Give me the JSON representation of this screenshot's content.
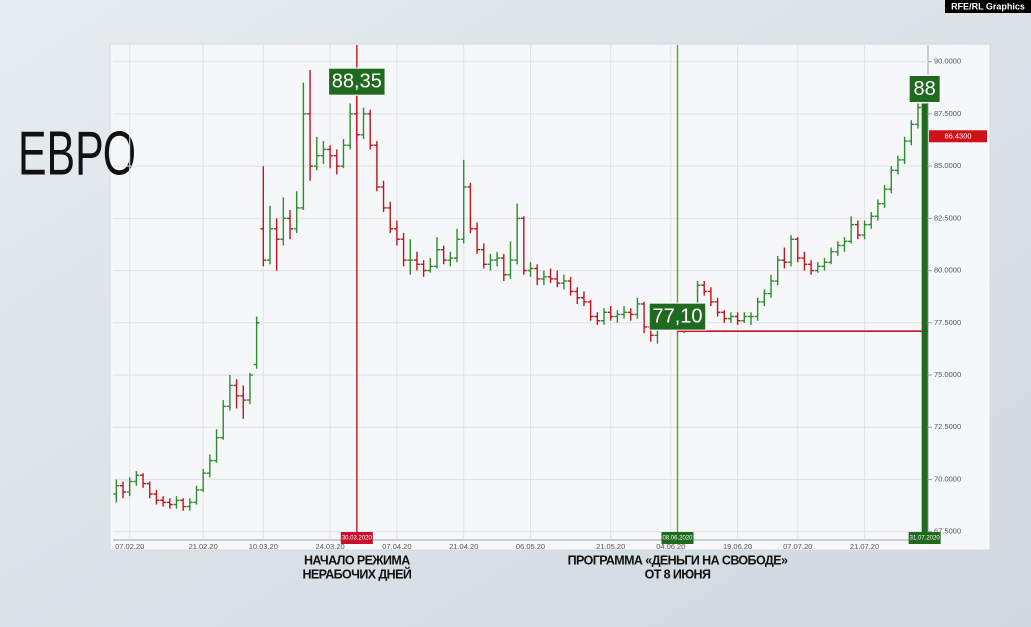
{
  "chart_data": {
    "type": "ohlc",
    "title": "ЕВРО",
    "credit": "RFE/RL Graphics",
    "categories": [
      null,
      null,
      "07.02.20",
      null,
      null,
      null,
      null,
      null,
      null,
      null,
      null,
      null,
      null,
      "21.02.20",
      null,
      null,
      null,
      null,
      null,
      null,
      null,
      null,
      "10.03.20",
      null,
      null,
      null,
      null,
      null,
      null,
      null,
      null,
      null,
      "24.03.20",
      null,
      null,
      null,
      null,
      null,
      null,
      null,
      null,
      null,
      "07.04.20",
      null,
      null,
      null,
      null,
      null,
      null,
      null,
      null,
      null,
      "21.04.20",
      null,
      null,
      null,
      null,
      null,
      null,
      null,
      null,
      null,
      "06.05.20",
      null,
      null,
      null,
      null,
      null,
      null,
      null,
      null,
      null,
      null,
      null,
      "21.05.20",
      null,
      null,
      null,
      null,
      null,
      null,
      null,
      null,
      "04.06.20",
      null,
      null,
      null,
      null,
      null,
      null,
      null,
      null,
      null,
      "19.06.20",
      null,
      null,
      null,
      null,
      null,
      null,
      null,
      null,
      "07.07.20",
      null,
      null,
      null,
      null,
      null,
      null,
      null,
      null,
      null,
      "21.07.20",
      null,
      null,
      null,
      null,
      null,
      null,
      null,
      null,
      null
    ],
    "ohlc": [
      [
        69.3,
        70.0,
        68.9,
        69.7
      ],
      [
        69.7,
        69.9,
        69.1,
        69.4
      ],
      [
        69.4,
        70.1,
        69.2,
        69.9
      ],
      [
        69.9,
        70.4,
        69.7,
        70.2
      ],
      [
        70.2,
        70.3,
        69.6,
        69.8
      ],
      [
        69.8,
        69.9,
        69.1,
        69.3
      ],
      [
        69.3,
        69.5,
        68.8,
        69.0
      ],
      [
        69.0,
        69.2,
        68.7,
        68.9
      ],
      [
        68.9,
        69.1,
        68.6,
        68.8
      ],
      [
        68.8,
        69.2,
        68.6,
        69.0
      ],
      [
        69.0,
        69.1,
        68.5,
        68.7
      ],
      [
        68.7,
        69.1,
        68.5,
        68.9
      ],
      [
        68.9,
        69.7,
        68.8,
        69.5
      ],
      [
        69.5,
        70.5,
        69.4,
        70.3
      ],
      [
        70.3,
        71.2,
        70.1,
        70.9
      ],
      [
        70.9,
        72.4,
        70.8,
        72.0
      ],
      [
        72.0,
        73.8,
        71.9,
        73.5
      ],
      [
        73.5,
        75.0,
        73.3,
        74.5
      ],
      [
        74.5,
        74.8,
        73.4,
        74.0
      ],
      [
        74.0,
        74.5,
        72.9,
        73.8
      ],
      [
        73.8,
        75.1,
        73.6,
        75.0
      ],
      [
        75.5,
        77.8,
        75.3,
        77.5
      ],
      [
        82.0,
        85.0,
        80.2,
        80.5
      ],
      [
        80.5,
        83.1,
        80.3,
        82.0
      ],
      [
        82.0,
        82.5,
        80.0,
        81.5
      ],
      [
        81.5,
        83.5,
        81.2,
        82.5
      ],
      [
        82.5,
        82.9,
        81.5,
        82.0
      ],
      [
        82.0,
        83.8,
        81.8,
        83.0
      ],
      [
        83.0,
        89.0,
        82.9,
        87.5
      ],
      [
        87.5,
        89.6,
        84.3,
        85.0
      ],
      [
        85.0,
        86.4,
        84.8,
        85.5
      ],
      [
        85.5,
        86.2,
        85.1,
        85.8
      ],
      [
        85.8,
        86.0,
        84.9,
        85.5
      ],
      [
        85.5,
        85.8,
        84.6,
        85.0
      ],
      [
        85.0,
        86.3,
        84.9,
        86.0
      ],
      [
        86.0,
        88.0,
        85.8,
        87.5
      ],
      [
        87.5,
        88.35,
        86.2,
        86.5
      ],
      [
        86.5,
        87.8,
        86.3,
        87.5
      ],
      [
        87.5,
        87.7,
        85.8,
        86.0
      ],
      [
        86.0,
        86.2,
        83.8,
        84.0
      ],
      [
        84.0,
        84.3,
        82.8,
        83.0
      ],
      [
        83.0,
        83.3,
        81.8,
        82.0
      ],
      [
        82.0,
        82.4,
        81.2,
        81.5
      ],
      [
        81.5,
        81.8,
        80.2,
        80.5
      ],
      [
        80.5,
        81.5,
        79.8,
        80.5
      ],
      [
        80.5,
        80.9,
        80.0,
        80.3
      ],
      [
        80.3,
        80.5,
        79.7,
        80.0
      ],
      [
        80.0,
        80.6,
        79.9,
        80.2
      ],
      [
        80.2,
        81.6,
        80.1,
        81.0
      ],
      [
        81.0,
        81.2,
        80.3,
        80.5
      ],
      [
        80.5,
        80.9,
        80.2,
        80.6
      ],
      [
        80.6,
        82.0,
        80.4,
        81.5
      ],
      [
        81.5,
        85.3,
        81.3,
        84.0
      ],
      [
        84.0,
        84.2,
        81.8,
        82.0
      ],
      [
        82.0,
        82.3,
        80.8,
        81.0
      ],
      [
        81.0,
        81.3,
        80.1,
        80.3
      ],
      [
        80.3,
        80.8,
        80.0,
        80.5
      ],
      [
        80.5,
        80.9,
        80.2,
        80.6
      ],
      [
        80.6,
        80.8,
        79.5,
        79.8
      ],
      [
        79.8,
        81.4,
        79.6,
        80.5
      ],
      [
        80.5,
        83.2,
        80.3,
        82.5
      ],
      [
        82.5,
        82.6,
        79.8,
        80.0
      ],
      [
        80.0,
        80.4,
        79.7,
        80.1
      ],
      [
        80.1,
        80.3,
        79.3,
        79.6
      ],
      [
        79.6,
        80.0,
        79.3,
        79.7
      ],
      [
        79.7,
        80.1,
        79.4,
        79.6
      ],
      [
        79.6,
        80.0,
        79.2,
        79.4
      ],
      [
        79.4,
        79.8,
        79.1,
        79.5
      ],
      [
        79.5,
        79.7,
        78.8,
        79.0
      ],
      [
        79.0,
        79.2,
        78.4,
        78.7
      ],
      [
        78.7,
        79.0,
        78.3,
        78.5
      ],
      [
        78.5,
        78.6,
        77.6,
        77.8
      ],
      [
        77.8,
        78.0,
        77.4,
        77.6
      ],
      [
        77.6,
        78.2,
        77.4,
        78.0
      ],
      [
        78.0,
        78.3,
        77.6,
        77.8
      ],
      [
        77.8,
        78.1,
        77.5,
        77.9
      ],
      [
        77.9,
        78.3,
        77.7,
        78.0
      ],
      [
        78.0,
        78.2,
        77.6,
        77.9
      ],
      [
        77.9,
        78.7,
        77.7,
        78.4
      ],
      [
        78.4,
        78.5,
        77.0,
        77.3
      ],
      [
        77.3,
        77.5,
        76.6,
        76.9
      ],
      [
        76.9,
        77.8,
        76.5,
        77.5
      ],
      [
        77.5,
        78.2,
        77.3,
        77.9
      ],
      [
        77.9,
        78.0,
        77.3,
        77.6
      ],
      [
        77.6,
        77.8,
        76.9,
        77.1
      ],
      [
        77.1,
        78.0,
        77.0,
        77.8
      ],
      [
        77.8,
        78.1,
        77.3,
        77.5
      ],
      [
        77.5,
        79.5,
        77.4,
        79.3
      ],
      [
        79.3,
        79.5,
        78.8,
        79.0
      ],
      [
        79.0,
        79.2,
        78.3,
        78.5
      ],
      [
        78.5,
        78.7,
        77.8,
        78.0
      ],
      [
        78.0,
        78.1,
        77.5,
        77.7
      ],
      [
        77.7,
        78.0,
        77.5,
        77.8
      ],
      [
        77.8,
        78.0,
        77.4,
        77.6
      ],
      [
        77.6,
        78.0,
        77.5,
        77.8
      ],
      [
        77.8,
        78.0,
        77.4,
        77.8
      ],
      [
        77.8,
        78.7,
        77.6,
        78.5
      ],
      [
        78.5,
        79.1,
        78.3,
        78.9
      ],
      [
        78.9,
        79.8,
        78.7,
        79.5
      ],
      [
        79.5,
        80.7,
        79.3,
        80.5
      ],
      [
        80.5,
        81.1,
        80.1,
        80.4
      ],
      [
        80.4,
        81.7,
        80.2,
        81.5
      ],
      [
        81.5,
        81.6,
        80.4,
        80.6
      ],
      [
        80.6,
        80.9,
        80.0,
        80.3
      ],
      [
        80.3,
        80.5,
        79.8,
        80.0
      ],
      [
        80.0,
        80.4,
        79.9,
        80.2
      ],
      [
        80.2,
        80.6,
        80.0,
        80.4
      ],
      [
        80.4,
        81.1,
        80.3,
        80.9
      ],
      [
        80.9,
        81.4,
        80.7,
        81.2
      ],
      [
        81.2,
        81.6,
        80.9,
        81.4
      ],
      [
        81.4,
        82.6,
        81.3,
        82.2
      ],
      [
        82.2,
        82.4,
        81.5,
        81.7
      ],
      [
        81.7,
        82.4,
        81.5,
        82.2
      ],
      [
        82.2,
        82.8,
        82.0,
        82.6
      ],
      [
        82.6,
        83.4,
        82.4,
        83.2
      ],
      [
        83.2,
        84.1,
        83.0,
        83.9
      ],
      [
        83.9,
        85.0,
        83.7,
        84.8
      ],
      [
        84.8,
        85.5,
        84.6,
        85.3
      ],
      [
        85.3,
        86.4,
        85.1,
        86.2
      ],
      [
        86.2,
        87.2,
        86.0,
        87.0
      ],
      [
        87.0,
        88.0,
        86.8,
        87.8
      ],
      [
        87.8,
        88.0,
        86.2,
        86.4
      ]
    ],
    "up_color": "#2e8b2e",
    "down_color": "#c0141e",
    "ylim": [
      67.1,
      90.8
    ],
    "yticks": [
      {
        "value": 67.5,
        "label": "67.5000"
      },
      {
        "value": 70,
        "label": "70.0000"
      },
      {
        "value": 72.5,
        "label": "72.5000"
      },
      {
        "value": 75,
        "label": "75.0000"
      },
      {
        "value": 77.5,
        "label": "77.5000"
      },
      {
        "value": 80,
        "label": "80.0000"
      },
      {
        "value": 82.5,
        "label": "82.5000"
      },
      {
        "value": 85,
        "label": "85.0000"
      },
      {
        "value": 87.5,
        "label": "87.5000"
      },
      {
        "value": 90,
        "label": "90.0000"
      }
    ],
    "grid": true,
    "last_price": {
      "value": 86.43,
      "label": "86.4300",
      "color": "#d0101a"
    },
    "markers": [
      {
        "index": 36,
        "date_label": "30.03.2020",
        "value": 88.35,
        "value_label": "88,35",
        "line_color": "#c8102e",
        "date_color": "#c8102e",
        "style": "line",
        "caption": [
          "НАЧАЛО РЕЖИМА",
          "НЕРАБОЧИХ ДНЕЙ"
        ]
      },
      {
        "index": 84,
        "date_label": "08.06.2020",
        "value": 77.1,
        "value_label": "77,10",
        "line_color": "#5f9e3c",
        "date_color": "#1f6a1f",
        "style": "line",
        "level_color": "#c8102e",
        "caption": [
          "ПРОГРАММА «ДЕНЬГИ НА СВОБОДЕ»",
          "ОТ 8 ИЮНЯ"
        ]
      },
      {
        "index": 121,
        "date_label": "31.07.2020",
        "value": 88,
        "value_label": "88",
        "line_color": "#1f6a1f",
        "date_color": "#1f6a1f",
        "style": "bar"
      }
    ]
  }
}
